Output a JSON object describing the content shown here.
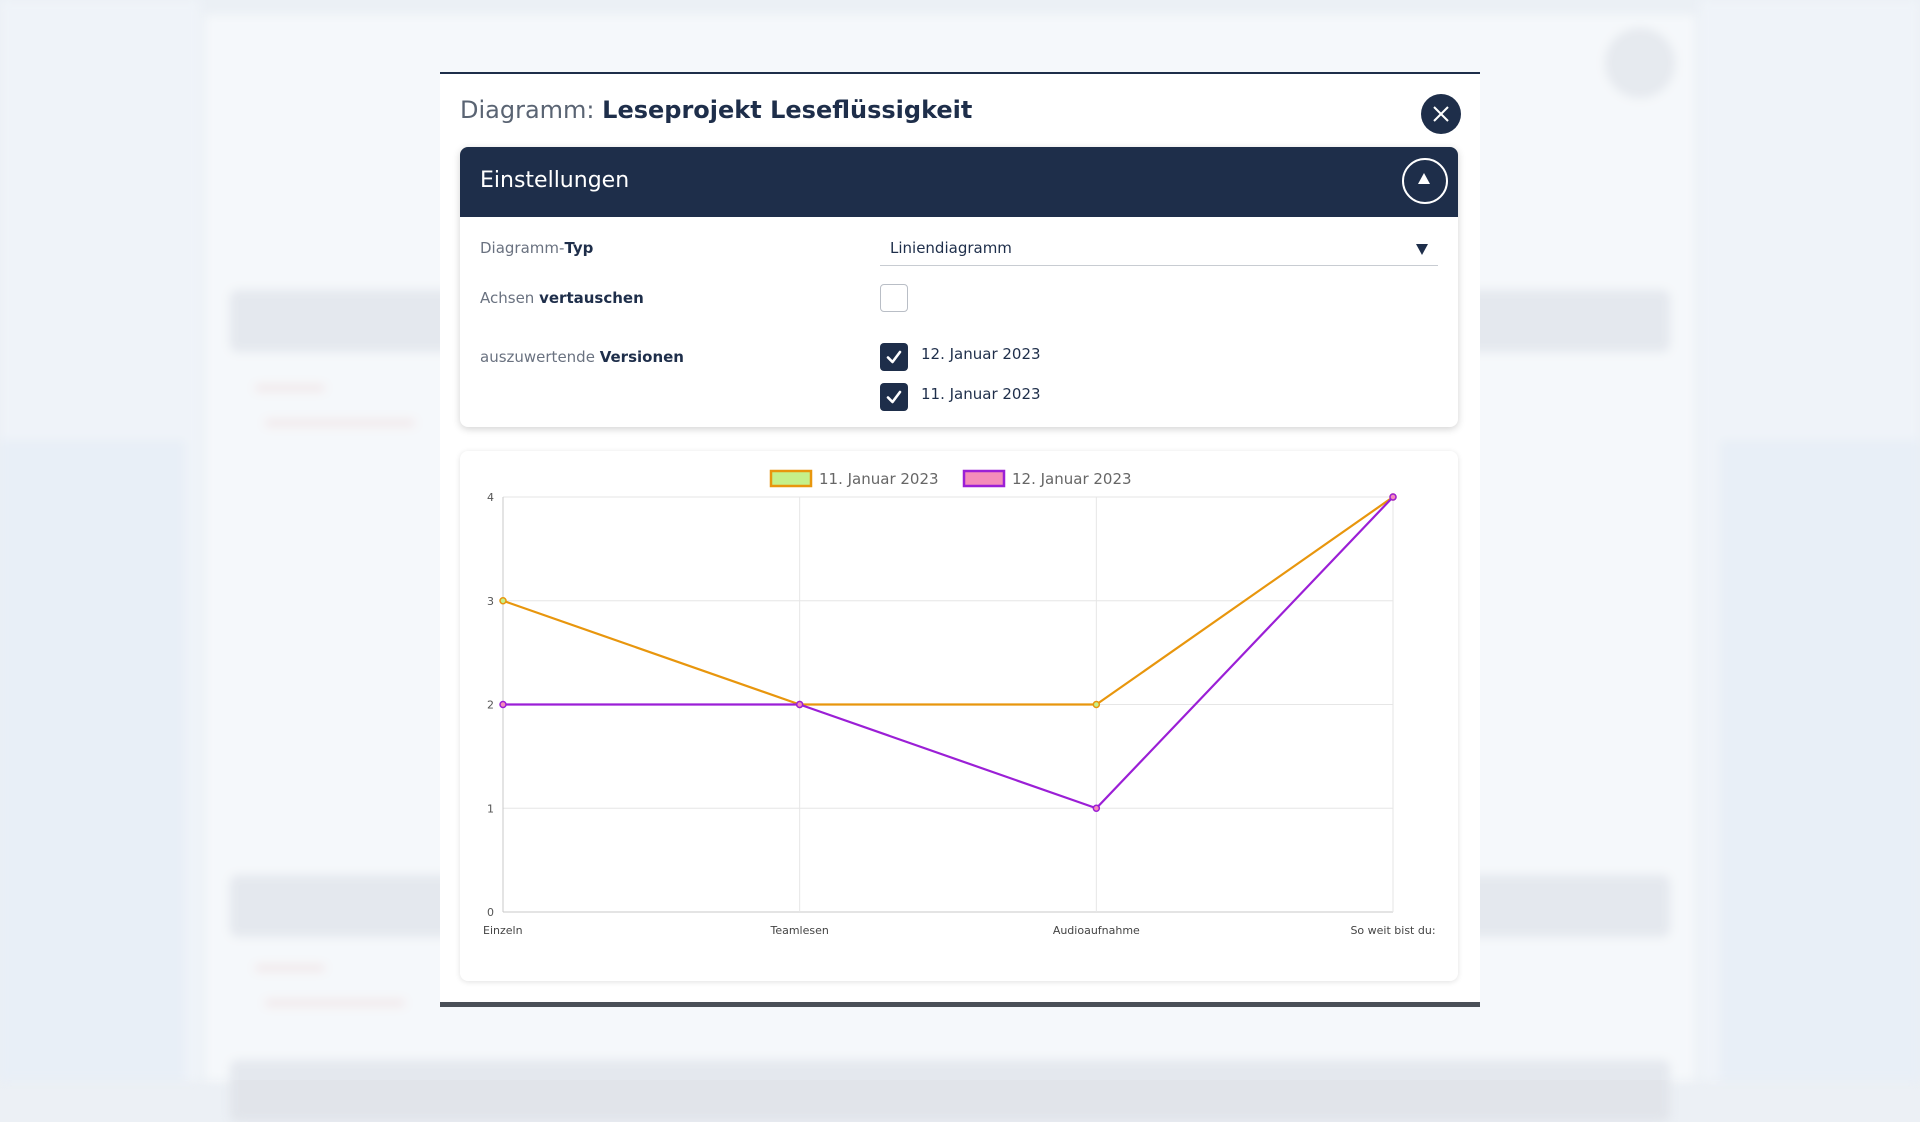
{
  "modal": {
    "title_prefix": "Diagramm:",
    "title": "Leseprojekt Leseflüssigkeit"
  },
  "settings": {
    "title": "Einstellungen",
    "chart_type_label_normal": "Diagramm-",
    "chart_type_label_bold": "Typ",
    "chart_type_value": "Liniendiagramm",
    "swap_axes_label_normal": "Achsen",
    "swap_axes_label_bold": "vertauschen",
    "swap_axes_checked": false,
    "versions_label_normal": "auszuwertende",
    "versions_label_bold": "Versionen",
    "versions": [
      {
        "label": "12. Januar 2023",
        "checked": true
      },
      {
        "label": "11. Januar 2023",
        "checked": true
      }
    ]
  },
  "icons": {
    "close": "close-icon",
    "collapse": "chevron-up-icon",
    "dropdown": "caret-down-icon",
    "check": "check-icon"
  },
  "chart_data": {
    "type": "line",
    "categories": [
      "Einzeln",
      "Teamlesen",
      "Audioaufnahme",
      "So weit bist du:"
    ],
    "series": [
      {
        "name": "11. Januar 2023",
        "values": [
          3,
          2,
          2,
          4
        ],
        "color": "#e8960d",
        "legend_fill": "#c5f08a"
      },
      {
        "name": "12. Januar 2023",
        "values": [
          2,
          2,
          1,
          4
        ],
        "color": "#9b1fd6",
        "legend_fill": "#f48cba"
      }
    ],
    "yticks": [
      0,
      1,
      2,
      3,
      4
    ],
    "ylim": [
      0,
      4
    ],
    "grid": true,
    "legend_position": "top-center",
    "title": "",
    "xlabel": "",
    "ylabel": ""
  }
}
